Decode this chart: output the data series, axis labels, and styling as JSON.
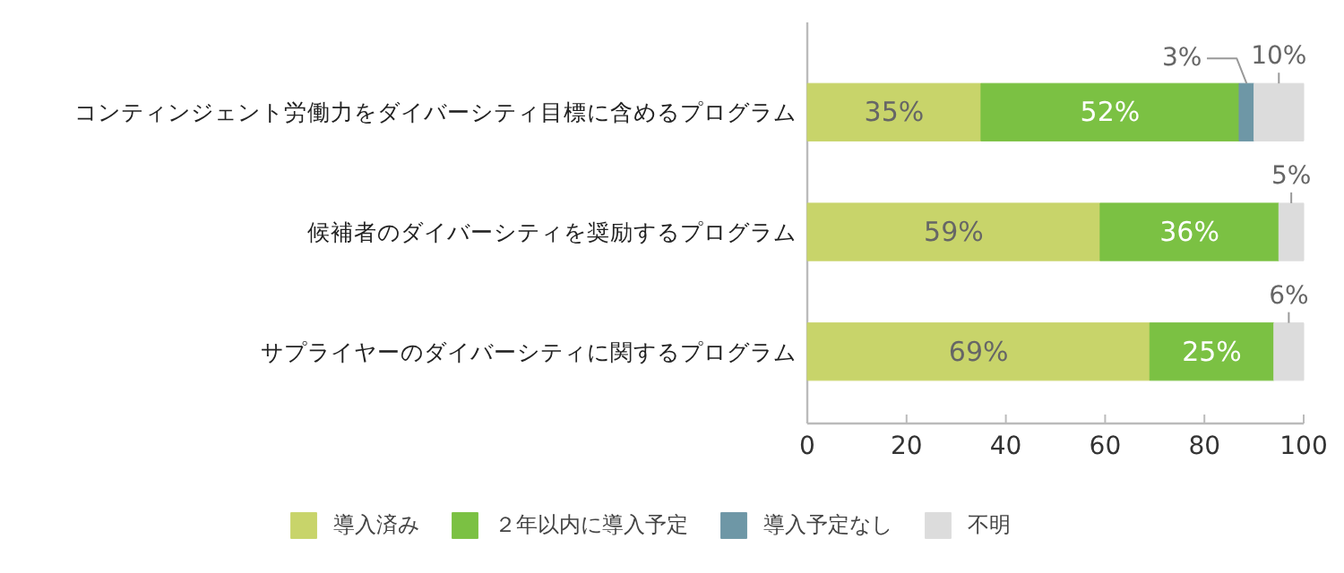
{
  "chart_data": {
    "type": "bar",
    "orientation": "horizontal",
    "stacked": true,
    "categories": [
      "コンティンジェント労働力をダイバーシティ目標に含めるプログラム",
      "候補者のダイバーシティを奨励するプログラム",
      "サプライヤーのダイバーシティに関するプログラム"
    ],
    "series": [
      {
        "name": "導入済み",
        "color": "#c8d46a",
        "values": [
          35,
          59,
          69
        ],
        "value_labels": [
          "35%",
          "59%",
          "69%"
        ]
      },
      {
        "name": "２年以内に導入予定",
        "color": "#7bc143",
        "values": [
          52,
          36,
          25
        ],
        "value_labels": [
          "52%",
          "36%",
          "25%"
        ]
      },
      {
        "name": "導入予定なし",
        "color": "#6e97a6",
        "values": [
          3,
          0,
          0
        ],
        "value_labels": [
          "3%",
          null,
          null
        ]
      },
      {
        "name": "不明",
        "color": "#dcdcdc",
        "values": [
          10,
          5,
          6
        ],
        "value_labels": [
          "10%",
          "5%",
          "6%"
        ]
      }
    ],
    "xlim": [
      0,
      100
    ],
    "xticks": [
      0,
      20,
      40,
      60,
      80,
      100
    ],
    "grid": false,
    "legend": "bottom"
  }
}
